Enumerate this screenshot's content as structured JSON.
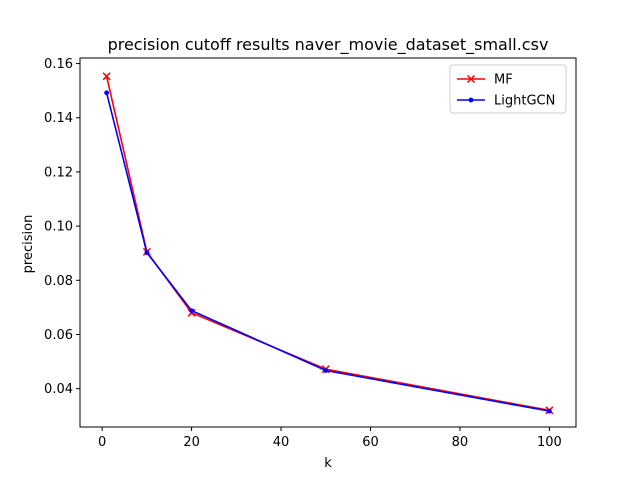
{
  "chart_data": {
    "type": "line",
    "title": "precision cutoff results naver_movie_dataset_small.csv",
    "xlabel": "k",
    "ylabel": "precision",
    "x": [
      1,
      10,
      20,
      50,
      100
    ],
    "xlim": [
      -4.95,
      105.95
    ],
    "ylim": [
      0.02585,
      0.16205
    ],
    "xticks": [
      0,
      20,
      40,
      60,
      80,
      100
    ],
    "yticks": [
      0.04,
      0.06,
      0.08,
      0.1,
      0.12,
      0.14,
      0.16
    ],
    "ytick_labels": [
      "0.04",
      "0.06",
      "0.08",
      "0.10",
      "0.12",
      "0.14",
      "0.16"
    ],
    "grid": false,
    "legend_position": "upper-right",
    "series": [
      {
        "name": "MF",
        "color": "#ff0000",
        "marker": "x",
        "values": [
          0.1553,
          0.0905,
          0.068,
          0.0472,
          0.032
        ]
      },
      {
        "name": "LightGCN",
        "color": "#0000ff",
        "marker": "dot",
        "values": [
          0.1492,
          0.0902,
          0.0688,
          0.0467,
          0.0317
        ]
      }
    ]
  }
}
